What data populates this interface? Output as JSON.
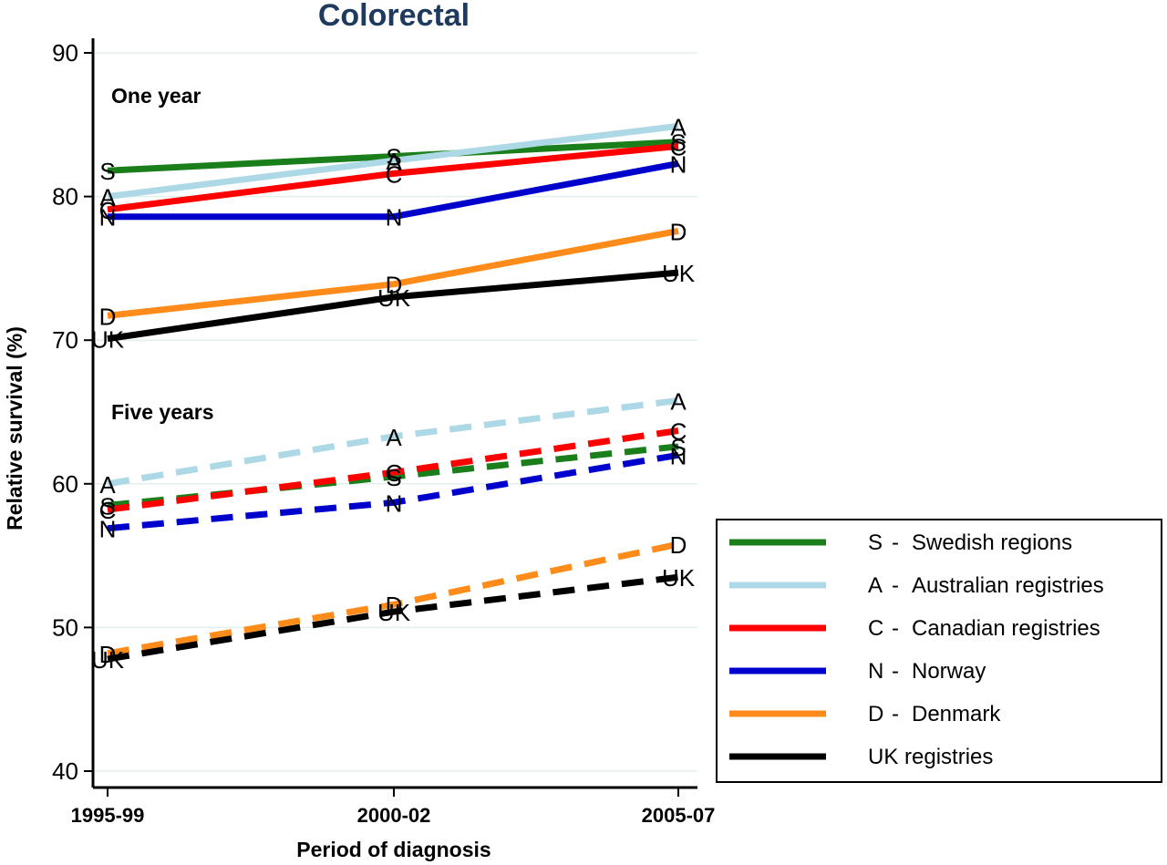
{
  "chart_data": {
    "type": "line",
    "title": "Colorectal",
    "xlabel": "Period of diagnosis",
    "ylabel": "Relative survival (%)",
    "categories": [
      "1995-99",
      "2000-02",
      "2005-07"
    ],
    "ylim": [
      40,
      90
    ],
    "yticks": [
      40,
      50,
      60,
      70,
      80,
      90
    ],
    "grid": true,
    "legend_position": "right",
    "section_labels": {
      "one_year": "One year",
      "five_years": "Five years"
    },
    "legend": [
      {
        "key": "S",
        "sep": "-",
        "text": "Swedish regions",
        "color": "#1a7f1a"
      },
      {
        "key": "A",
        "sep": "-",
        "text": "Australian registries",
        "color": "#add8e6"
      },
      {
        "key": "C",
        "sep": "-",
        "text": "Canadian registries",
        "color": "#ff0000"
      },
      {
        "key": "N",
        "sep": "-",
        "text": "Norway",
        "color": "#0000cc"
      },
      {
        "key": "D",
        "sep": "-",
        "text": "Denmark",
        "color": "#ff8c1a"
      },
      {
        "key": "",
        "sep": "",
        "text": "UK registries",
        "color": "#000000"
      }
    ],
    "series": [
      {
        "name": "S - Swedish regions",
        "label": "S",
        "color": "#1a7f1a",
        "dash": false,
        "values": [
          81.8,
          82.8,
          83.8
        ]
      },
      {
        "name": "A - Australian registries",
        "label": "A",
        "color": "#add8e6",
        "dash": false,
        "values": [
          80.0,
          82.5,
          84.9
        ]
      },
      {
        "name": "C - Canadian registries",
        "label": "C",
        "color": "#ff0000",
        "dash": false,
        "values": [
          79.1,
          81.6,
          83.5
        ]
      },
      {
        "name": "N - Norway",
        "label": "N",
        "color": "#0000cc",
        "dash": false,
        "values": [
          78.6,
          78.6,
          82.3
        ]
      },
      {
        "name": "D - Denmark",
        "label": "D",
        "color": "#ff8c1a",
        "dash": false,
        "values": [
          71.7,
          73.9,
          77.6
        ]
      },
      {
        "name": "UK registries",
        "label": "UK",
        "color": "#000000",
        "dash": false,
        "values": [
          70.1,
          73.0,
          74.7
        ]
      },
      {
        "name": "S - Swedish regions",
        "label": "S",
        "color": "#1a7f1a",
        "dash": true,
        "values": [
          58.5,
          60.5,
          62.6
        ]
      },
      {
        "name": "A - Australian registries",
        "label": "A",
        "color": "#add8e6",
        "dash": true,
        "values": [
          60.0,
          63.3,
          65.8
        ]
      },
      {
        "name": "C - Canadian registries",
        "label": "C",
        "color": "#ff0000",
        "dash": true,
        "values": [
          58.2,
          60.8,
          63.7
        ]
      },
      {
        "name": "N - Norway",
        "label": "N",
        "color": "#0000cc",
        "dash": true,
        "values": [
          56.9,
          58.7,
          62.0
        ]
      },
      {
        "name": "D - Denmark",
        "label": "D",
        "color": "#ff8c1a",
        "dash": true,
        "values": [
          48.2,
          51.6,
          55.8
        ]
      },
      {
        "name": "UK registries",
        "label": "UK",
        "color": "#000000",
        "dash": true,
        "values": [
          47.8,
          51.1,
          53.5
        ]
      }
    ]
  }
}
